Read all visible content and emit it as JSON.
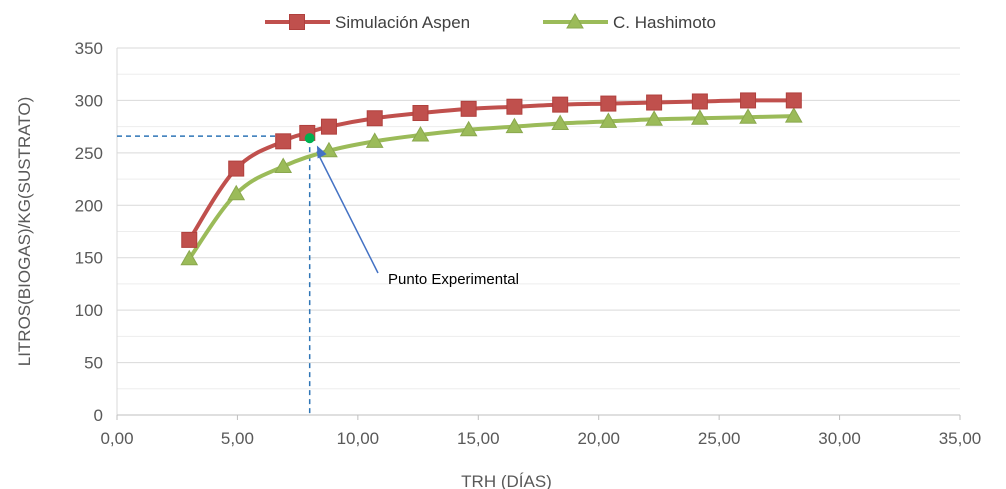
{
  "chart_data": {
    "type": "line",
    "xlabel": "TRH (DÍAS)",
    "ylabel": "LITROS(BIOGAS)/KG(SUSTRATO)",
    "xlim": [
      0,
      35
    ],
    "ylim": [
      0,
      350
    ],
    "x_ticks": [
      0,
      5,
      10,
      15,
      20,
      25,
      30,
      35
    ],
    "x_tick_labels": [
      "0,00",
      "5,00",
      "10,00",
      "15,00",
      "20,00",
      "25,00",
      "30,00",
      "35,00"
    ],
    "y_ticks": [
      0,
      50,
      100,
      150,
      200,
      250,
      300,
      350
    ],
    "y_tick_labels": [
      "0",
      "50",
      "100",
      "150",
      "200",
      "250",
      "300",
      "350"
    ],
    "grid": "horizontal",
    "legend_position": "top",
    "series": [
      {
        "name": "Simulación Aspen",
        "color": "#C0504D",
        "marker": "square",
        "x": [
          3.0,
          4.95,
          6.9,
          7.9,
          8.8,
          10.7,
          12.6,
          14.6,
          16.5,
          18.4,
          20.4,
          22.3,
          24.2,
          26.2,
          28.1
        ],
        "y": [
          167,
          235,
          261,
          269,
          275,
          283,
          288,
          292,
          294,
          296,
          297,
          298,
          299,
          300,
          300
        ]
      },
      {
        "name": "C. Hashimoto",
        "color": "#9BBB59",
        "marker": "triangle",
        "x": [
          3.0,
          4.95,
          6.9,
          8.8,
          10.7,
          12.6,
          14.6,
          16.5,
          18.4,
          20.4,
          22.3,
          24.2,
          26.2,
          28.1
        ],
        "y": [
          149,
          211,
          237,
          252,
          261,
          267,
          272,
          275,
          278,
          280,
          282,
          283,
          284,
          285
        ]
      }
    ],
    "experimental_point": {
      "x": 8.0,
      "y": 264,
      "color": "#00B050"
    },
    "annotations": [
      {
        "text": "Punto Experimental",
        "points_to": {
          "x": 8.3,
          "y": 257
        }
      }
    ]
  }
}
